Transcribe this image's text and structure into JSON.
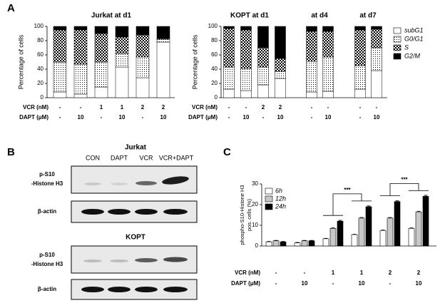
{
  "panel_labels": [
    "A",
    "B",
    "C"
  ],
  "chart_data": [
    {
      "type": "stacked_bar",
      "title": "Jurkat at d1",
      "ylabel": "Percentage of cells",
      "ylim": [
        0,
        100
      ],
      "yticks": [
        0,
        20,
        40,
        60,
        80,
        100
      ],
      "rows": [
        {
          "label": "VCR (nM)",
          "values": [
            "-",
            "-",
            "1",
            "1",
            "2",
            "2"
          ]
        },
        {
          "label": "DAPT (μM)",
          "values": [
            "-",
            "10",
            "-",
            "10",
            "-",
            "10"
          ]
        }
      ],
      "series": [
        {
          "fill": "white",
          "values": [
            8,
            5,
            15,
            43,
            28,
            78
          ]
        },
        {
          "fill": "dots",
          "values": [
            42,
            42,
            35,
            19,
            29,
            4
          ]
        },
        {
          "fill": "checker",
          "values": [
            45,
            48,
            40,
            23,
            31,
            1
          ]
        },
        {
          "fill": "black",
          "values": [
            5,
            5,
            10,
            15,
            12,
            17
          ]
        }
      ]
    },
    {
      "type": "stacked_bar",
      "title": "KOPT at d1",
      "ylabel": "Percentage of cells",
      "ylim": [
        0,
        100
      ],
      "yticks": [
        0,
        20,
        40,
        60,
        80,
        100
      ],
      "legend": "right",
      "rows": [
        {
          "label": "VCR (nM)",
          "values": [
            "-",
            "-",
            "2",
            "2"
          ]
        },
        {
          "label": "DAPT (μM)",
          "values": [
            "-",
            "10",
            "-",
            "10"
          ]
        }
      ],
      "series": [
        {
          "name": "subG1",
          "fill": "white",
          "values": [
            12,
            10,
            18,
            27
          ]
        },
        {
          "name": "G0/G1",
          "fill": "dots",
          "values": [
            31,
            31,
            25,
            10
          ]
        },
        {
          "name": "S",
          "fill": "checker",
          "values": [
            54,
            54,
            27,
            18
          ]
        },
        {
          "name": "G2/M",
          "fill": "black",
          "values": [
            3,
            5,
            30,
            45
          ]
        }
      ]
    },
    {
      "type": "stacked_bar",
      "title": "at d4",
      "rows": [
        {
          "values": [
            "-",
            "-"
          ]
        },
        {
          "values": [
            "-",
            "10"
          ]
        }
      ],
      "series": [
        {
          "fill": "white",
          "values": [
            8,
            9
          ]
        },
        {
          "fill": "dots",
          "values": [
            43,
            48
          ]
        },
        {
          "fill": "checker",
          "values": [
            42,
            36
          ]
        },
        {
          "fill": "black",
          "values": [
            7,
            7
          ]
        }
      ]
    },
    {
      "type": "stacked_bar",
      "title": "at d7",
      "rows": [
        {
          "values": [
            "-",
            "-"
          ]
        },
        {
          "values": [
            "-",
            "10"
          ]
        }
      ],
      "series": [
        {
          "fill": "white",
          "values": [
            12,
            38
          ]
        },
        {
          "fill": "dots",
          "values": [
            33,
            32
          ]
        },
        {
          "fill": "checker",
          "values": [
            50,
            26
          ]
        },
        {
          "fill": "black",
          "values": [
            5,
            4
          ]
        }
      ]
    },
    {
      "type": "grouped_bar",
      "ylabel": [
        "phospho-S10-Histone H3",
        "pos. cells (%)"
      ],
      "ylim": [
        0,
        30
      ],
      "yticks": [
        0,
        10,
        20,
        30
      ],
      "legend": "upper left",
      "rows": [
        {
          "label": "VCR (nM)",
          "values": [
            "-",
            "-",
            "1",
            "1",
            "2",
            "2"
          ]
        },
        {
          "label": "DAPT (μM)",
          "values": [
            "-",
            "10",
            "-",
            "10",
            "-",
            "10"
          ]
        }
      ],
      "series": [
        {
          "name": "6h",
          "color": "#ffffff",
          "values": [
            2,
            1.5,
            3.5,
            5.5,
            7.5,
            8.5
          ],
          "errors": [
            0.2,
            0.2,
            0.2,
            0.2,
            0.2,
            0.3
          ]
        },
        {
          "name": "12h",
          "color": "#c8c8c8",
          "values": [
            2.5,
            2.5,
            8.5,
            13.5,
            13.5,
            16.5
          ],
          "errors": [
            0.2,
            0.2,
            0.3,
            0.3,
            0.3,
            0.3
          ]
        },
        {
          "name": "24h",
          "color": "#000000",
          "values": [
            2,
            2.5,
            12,
            19,
            21.5,
            24
          ],
          "errors": [
            0.2,
            0.2,
            0.4,
            0.4,
            0.4,
            0.5
          ]
        }
      ],
      "annotations": [
        "***",
        "***"
      ]
    }
  ],
  "blot": {
    "panels": [
      {
        "title": "Jurkat",
        "lanes": [
          "CON",
          "DAPT",
          "VCR",
          "VCR+DAPT"
        ],
        "rows": [
          [
            "p-S10",
            "-Histone H3"
          ],
          [
            "β-actin"
          ]
        ]
      },
      {
        "title": "KOPT",
        "rows": [
          [
            "p-S10",
            "-Histone H3"
          ],
          [
            "β-actin"
          ]
        ]
      }
    ]
  }
}
